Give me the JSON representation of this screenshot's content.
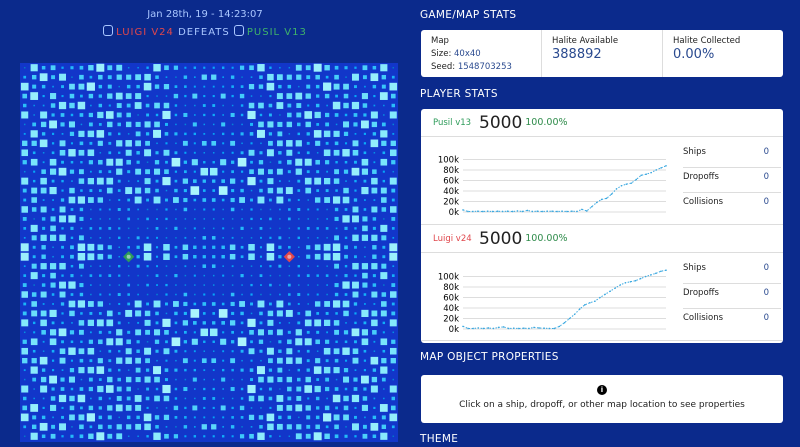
{
  "header": {
    "date": "Jan 28th, 19 - 14:23:07",
    "winner": "LUIGI V24",
    "verb": "DEFEATS",
    "loser": "PUSIL V13"
  },
  "colors": {
    "luigi": "#e0474c",
    "pusil": "#2e9b5a",
    "background": "#0b2a8c",
    "chart_line": "#3aa8e0"
  },
  "map": {
    "size": "40x40",
    "factories": [
      {
        "player": "Pusil v13",
        "col": 11,
        "row": 20,
        "color": "#2e9b5a"
      },
      {
        "player": "Luigi v24",
        "col": 28,
        "row": 20,
        "color": "#e0474c"
      }
    ]
  },
  "game_stats": {
    "title": "GAME/MAP STATS",
    "map_label": "Map",
    "size_label": "Size:",
    "size": "40x40",
    "seed_label": "Seed:",
    "seed": "1548703253",
    "halite_available_label": "Halite Available",
    "halite_available": "388892",
    "halite_collected_label": "Halite Collected",
    "halite_collected": "0.00%"
  },
  "player_stats": {
    "title": "PLAYER STATS",
    "players": [
      {
        "name": "Pusil v13",
        "score": "5000",
        "pct": "100.00%",
        "ships_label": "Ships",
        "ships": "0",
        "dropoffs_label": "Dropoffs",
        "dropoffs": "0",
        "collisions_label": "Collisions",
        "collisions": "0"
      },
      {
        "name": "Luigi v24",
        "score": "5000",
        "pct": "100.00%",
        "ships_label": "Ships",
        "ships": "0",
        "dropoffs_label": "Dropoffs",
        "dropoffs": "0",
        "collisions_label": "Collisions",
        "collisions": "0"
      }
    ]
  },
  "chart_data": [
    {
      "type": "line",
      "yticks": [
        "0k",
        "20k",
        "40k",
        "60k",
        "80k",
        "100k"
      ],
      "ylim": [
        0,
        100000
      ],
      "values": [
        4000,
        1000,
        1000,
        1500,
        1000,
        1500,
        1000,
        1500,
        1000,
        1500,
        1000,
        2000,
        1000,
        3000,
        1000,
        1500,
        1000,
        1500,
        1500,
        1000,
        1500,
        1000,
        1500,
        1000,
        5000,
        2000,
        10000,
        18000,
        24000,
        26000,
        34000,
        44000,
        50000,
        53000,
        55000,
        62000,
        70000,
        72000,
        75000,
        80000,
        84000,
        88000
      ]
    },
    {
      "type": "line",
      "yticks": [
        "0k",
        "20k",
        "40k",
        "60k",
        "80k",
        "100k"
      ],
      "ylim": [
        0,
        110000
      ],
      "values": [
        5000,
        1000,
        1000,
        2000,
        1000,
        2000,
        1000,
        3000,
        4000,
        1000,
        1500,
        1000,
        1500,
        1000,
        3000,
        2000,
        1500,
        1000,
        1000,
        5000,
        12000,
        20000,
        28000,
        38000,
        46000,
        50000,
        53000,
        60000,
        66000,
        72000,
        78000,
        84000,
        88000,
        90000,
        92000,
        96000,
        100000,
        103000,
        106000,
        110000,
        112000
      ]
    }
  ],
  "map_object": {
    "title": "MAP OBJECT PROPERTIES",
    "info_icon": "info-icon",
    "message": "Click on a ship, dropoff, or other map location to see properties"
  },
  "theme": {
    "title": "THEME"
  }
}
